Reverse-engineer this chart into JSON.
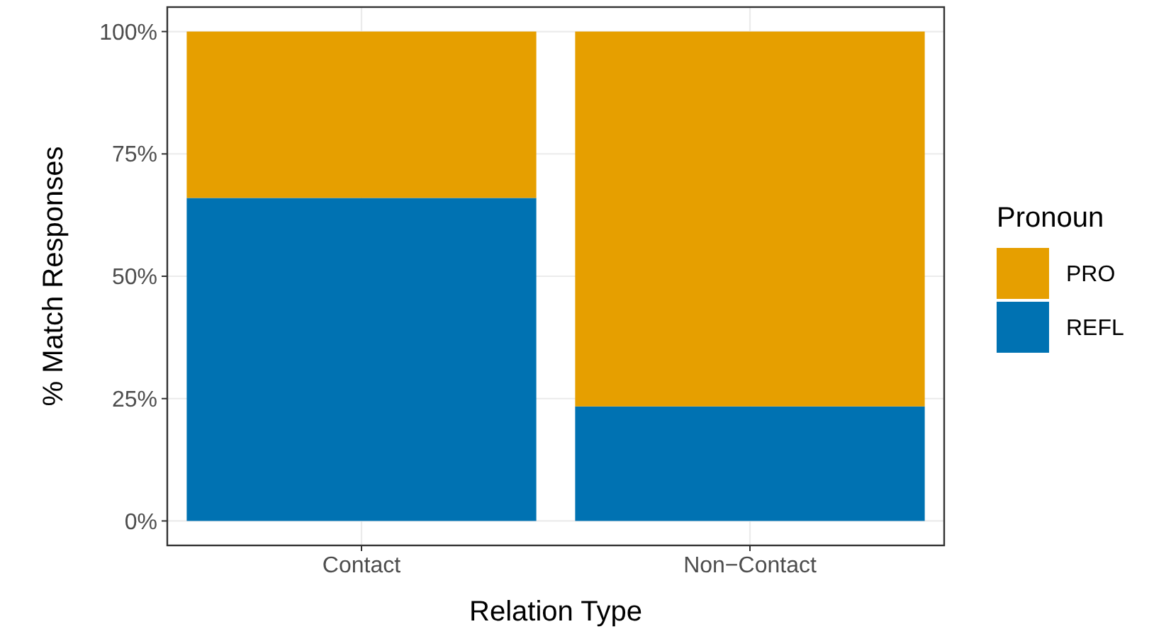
{
  "chart_data": {
    "type": "bar",
    "stacked": true,
    "xlabel": "Relation Type",
    "ylabel": "% Match Responses",
    "legend_title": "Pronoun",
    "categories": [
      "Contact",
      "Non−Contact"
    ],
    "series": [
      {
        "name": "REFL",
        "color": "#0072b2",
        "values": [
          66,
          23.4
        ]
      },
      {
        "name": "PRO",
        "color": "#e69f00",
        "values": [
          34,
          76.6
        ]
      }
    ],
    "ylim": [
      -5,
      105
    ],
    "yticks": [
      {
        "value": 0,
        "label": "0%"
      },
      {
        "value": 25,
        "label": "25%"
      },
      {
        "value": 50,
        "label": "50%"
      },
      {
        "value": 75,
        "label": "75%"
      },
      {
        "value": 100,
        "label": "100%"
      }
    ],
    "grid": true,
    "legend": "right"
  }
}
